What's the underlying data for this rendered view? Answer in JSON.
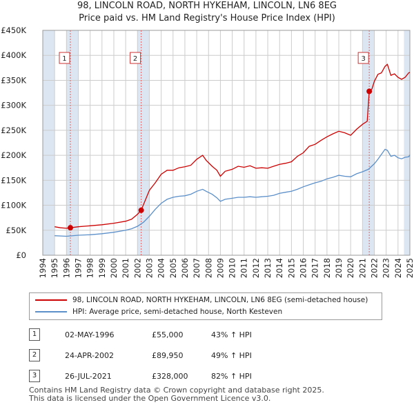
{
  "title_line1": "98, LINCOLN ROAD, NORTH HYKEHAM, LINCOLN, LN6 8EG",
  "title_line2": "Price paid vs. HM Land Registry's House Price Index (HPI)",
  "colors": {
    "property": "#cc0000",
    "hpi": "#5b8fc9",
    "shade": "#dce6f2",
    "vline": "#e06060",
    "grid": "#cccccc"
  },
  "legend": {
    "property_label": "98, LINCOLN ROAD, NORTH HYKEHAM, LINCOLN, LN6 8EG (semi-detached house)",
    "hpi_label": "HPI: Average price, semi-detached house, North Kesteven"
  },
  "sales": [
    {
      "num": "1",
      "date": "02-MAY-1996",
      "price": "£55,000",
      "hpi_change": "43% ↑ HPI"
    },
    {
      "num": "2",
      "date": "24-APR-2002",
      "price": "£89,950",
      "hpi_change": "49% ↑ HPI"
    },
    {
      "num": "3",
      "date": "26-JUL-2021",
      "price": "£328,000",
      "hpi_change": "82% ↑ HPI"
    }
  ],
  "footer": {
    "line1": "Contains HM Land Registry data © Crown copyright and database right 2025.",
    "line2": "This data is licensed under the Open Government Licence v3.0."
  },
  "chart_data": {
    "type": "line",
    "title": "Price paid vs. HM Land Registry's House Price Index (HPI)",
    "xlim": [
      1994,
      2025
    ],
    "ylim": [
      0,
      450000
    ],
    "x_ticks": [
      "1994",
      "1995",
      "1996",
      "1997",
      "1998",
      "1999",
      "2000",
      "2001",
      "2002",
      "2003",
      "2004",
      "2005",
      "2006",
      "2007",
      "2008",
      "2009",
      "2010",
      "2011",
      "2012",
      "2013",
      "2014",
      "2015",
      "2016",
      "2017",
      "2018",
      "2019",
      "2020",
      "2021",
      "2022",
      "2023",
      "2024",
      "2025"
    ],
    "y_ticks": [
      {
        "value": 0,
        "label": "£0"
      },
      {
        "value": 50000,
        "label": "£50K"
      },
      {
        "value": 100000,
        "label": "£100K"
      },
      {
        "value": 150000,
        "label": "£150K"
      },
      {
        "value": 200000,
        "label": "£200K"
      },
      {
        "value": 250000,
        "label": "£250K"
      },
      {
        "value": 300000,
        "label": "£300K"
      },
      {
        "value": 350000,
        "label": "£350K"
      },
      {
        "value": 400000,
        "label": "£400K"
      },
      {
        "value": 450000,
        "label": "£450K"
      }
    ],
    "shaded_ranges": [
      [
        1994,
        1995
      ],
      [
        2024.5,
        2025
      ]
    ],
    "sale_markers": [
      {
        "label": "1",
        "x": 1996.33,
        "y": 55000
      },
      {
        "label": "2",
        "x": 2002.31,
        "y": 89950
      },
      {
        "label": "3",
        "x": 2021.57,
        "y": 328000
      }
    ],
    "series": [
      {
        "name": "98, LINCOLN ROAD, NORTH HYKEHAM, LINCOLN, LN6 8EG (semi-detached house)",
        "x": [
          1995.0,
          1995.5,
          1996.0,
          1996.33,
          1997.0,
          1998.0,
          1999.0,
          2000.0,
          2001.0,
          2001.5,
          2002.0,
          2002.31,
          2003.0,
          2003.5,
          2004.0,
          2004.5,
          2005.0,
          2005.5,
          2006.0,
          2006.5,
          2007.0,
          2007.5,
          2007.8,
          2008.3,
          2008.7,
          2009.0,
          2009.4,
          2010.0,
          2010.5,
          2011.0,
          2011.5,
          2012.0,
          2012.5,
          2013.0,
          2013.5,
          2014.0,
          2014.5,
          2015.0,
          2015.5,
          2016.0,
          2016.5,
          2017.0,
          2017.5,
          2018.0,
          2018.5,
          2019.0,
          2019.5,
          2020.0,
          2020.5,
          2021.0,
          2021.4,
          2021.57,
          2021.8,
          2022.0,
          2022.3,
          2022.6,
          2022.9,
          2023.1,
          2023.4,
          2023.7,
          2024.0,
          2024.3,
          2024.6,
          2024.9,
          2025.0
        ],
        "y": [
          57000,
          55000,
          54000,
          55000,
          57000,
          59000,
          61000,
          64000,
          68000,
          72000,
          82000,
          89950,
          130000,
          145000,
          162000,
          170000,
          170000,
          175000,
          177000,
          180000,
          192000,
          200000,
          190000,
          178000,
          170000,
          158000,
          168000,
          172000,
          178000,
          176000,
          179000,
          174000,
          175000,
          174000,
          178000,
          182000,
          184000,
          187000,
          198000,
          205000,
          218000,
          222000,
          230000,
          237000,
          243000,
          248000,
          245000,
          240000,
          252000,
          262000,
          268000,
          328000,
          333000,
          348000,
          362000,
          365000,
          378000,
          382000,
          360000,
          363000,
          356000,
          352000,
          356000,
          365000,
          366000
        ]
      },
      {
        "name": "HPI: Average price, semi-detached house, North Kesteven",
        "x": [
          1995.0,
          1996.0,
          1997.0,
          1998.0,
          1999.0,
          2000.0,
          2001.0,
          2001.5,
          2002.0,
          2002.5,
          2003.0,
          2003.5,
          2004.0,
          2004.5,
          2005.0,
          2005.5,
          2006.0,
          2006.5,
          2007.0,
          2007.5,
          2007.8,
          2008.3,
          2008.7,
          2009.0,
          2009.4,
          2010.0,
          2010.5,
          2011.0,
          2011.5,
          2012.0,
          2012.5,
          2013.0,
          2013.5,
          2014.0,
          2014.5,
          2015.0,
          2015.5,
          2016.0,
          2016.5,
          2017.0,
          2017.5,
          2018.0,
          2018.5,
          2019.0,
          2019.5,
          2020.0,
          2020.5,
          2021.0,
          2021.5,
          2022.0,
          2022.3,
          2022.6,
          2022.9,
          2023.1,
          2023.4,
          2023.7,
          2024.0,
          2024.3,
          2024.6,
          2024.9,
          2025.0
        ],
        "y": [
          39000,
          38000,
          40000,
          41000,
          43000,
          46000,
          50000,
          53000,
          58000,
          66000,
          78000,
          92000,
          104000,
          112000,
          116000,
          118000,
          119000,
          122000,
          128000,
          132000,
          128000,
          122000,
          115000,
          108000,
          112000,
          114000,
          116000,
          116000,
          117000,
          116000,
          117000,
          118000,
          120000,
          124000,
          126000,
          128000,
          132000,
          137000,
          141000,
          145000,
          148000,
          153000,
          156000,
          160000,
          158000,
          157000,
          163000,
          167000,
          172000,
          183000,
          192000,
          202000,
          212000,
          210000,
          198000,
          200000,
          195000,
          193000,
          196000,
          197000,
          201000
        ]
      }
    ]
  }
}
